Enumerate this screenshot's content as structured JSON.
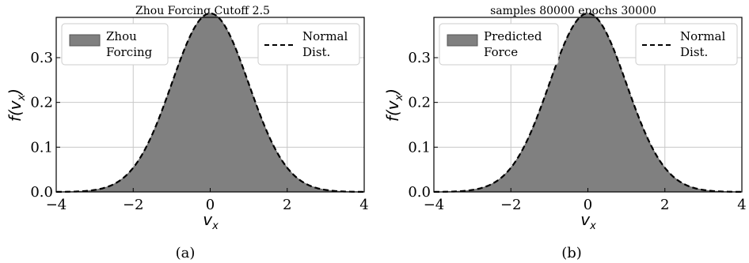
{
  "colors": {
    "fill": "#808080",
    "fill_edge": "#606060",
    "curve": "#000000",
    "grid": "#c8c8c8",
    "axis": "#000000"
  },
  "chart_data": [
    {
      "type": "area",
      "title": "Zhou Forcing Cutoff 2.5",
      "xlabel": "v_x",
      "ylabel": "f(v_x)",
      "xlim": [
        -4,
        4
      ],
      "ylim": [
        0,
        0.39
      ],
      "xticks": [
        -4,
        -2,
        0,
        2,
        4
      ],
      "yticks": [
        0.0,
        0.1,
        0.2,
        0.3
      ],
      "xtick_labels": [
        "−4",
        "−2",
        "0",
        "2",
        "4"
      ],
      "ytick_labels": [
        "0.0",
        "0.1",
        "0.2",
        "0.3"
      ],
      "grid": true,
      "legend_placement": "top (two boxes: upper-left and upper-right)",
      "caption": "(a)",
      "series": [
        {
          "name": "Zhou Forcing",
          "legend_lines": [
            "Zhou",
            "Forcing"
          ],
          "kind": "histogram",
          "distribution": "normal",
          "mean": 0,
          "std": 1
        },
        {
          "name": "Normal Dist.",
          "legend_lines": [
            "Normal",
            "Dist."
          ],
          "kind": "dashed-line",
          "distribution": "normal",
          "mean": 0,
          "std": 1
        }
      ]
    },
    {
      "type": "area",
      "title": "samples 80000 epochs 30000",
      "xlabel": "v_x",
      "ylabel": "f(v_x)",
      "xlim": [
        -4,
        4
      ],
      "ylim": [
        0,
        0.39
      ],
      "xticks": [
        -4,
        -2,
        0,
        2,
        4
      ],
      "yticks": [
        0.0,
        0.1,
        0.2,
        0.3
      ],
      "xtick_labels": [
        "−4",
        "−2",
        "0",
        "2",
        "4"
      ],
      "ytick_labels": [
        "0.0",
        "0.1",
        "0.2",
        "0.3"
      ],
      "grid": true,
      "legend_placement": "top (two boxes: upper-left and upper-right)",
      "caption": "(b)",
      "series": [
        {
          "name": "Predicted Force",
          "legend_lines": [
            "Predicted",
            "Force"
          ],
          "kind": "histogram",
          "distribution": "normal",
          "mean": 0,
          "std": 1
        },
        {
          "name": "Normal Dist.",
          "legend_lines": [
            "Normal",
            "Dist."
          ],
          "kind": "dashed-line",
          "distribution": "normal",
          "mean": 0,
          "std": 1
        }
      ]
    }
  ]
}
